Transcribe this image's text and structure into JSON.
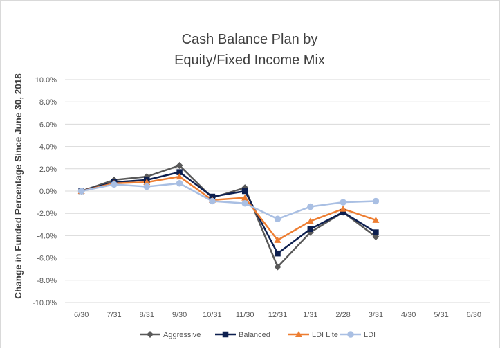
{
  "chart_data": {
    "type": "line",
    "title_lines": [
      "Cash Balance Plan by",
      "Equity/Fixed Income Mix"
    ],
    "xlabel": "",
    "ylabel": "Change in Funded Percentage Since June 30, 2018",
    "categories": [
      "6/30",
      "7/31",
      "8/31",
      "9/30",
      "10/31",
      "11/30",
      "12/31",
      "1/31",
      "2/28",
      "3/31",
      "4/30",
      "5/31",
      "6/30"
    ],
    "ylim": [
      -10.0,
      10.0
    ],
    "yticks": [
      "10.0%",
      "8.0%",
      "6.0%",
      "4.0%",
      "2.0%",
      "0.0%",
      "-2.0%",
      "-4.0%",
      "-6.0%",
      "-8.0%",
      "-10.0%"
    ],
    "ytick_values": [
      10,
      8,
      6,
      4,
      2,
      0,
      -2,
      -4,
      -6,
      -8,
      -10
    ],
    "grid": "horizontal",
    "legend_position": "bottom",
    "series": [
      {
        "name": "Aggressive",
        "color": "#595959",
        "marker": "diamond",
        "values": [
          0.0,
          1.0,
          1.3,
          2.3,
          -0.6,
          0.3,
          -6.8,
          -3.7,
          -1.9,
          -4.1,
          null,
          null,
          null
        ]
      },
      {
        "name": "Balanced",
        "color": "#0d1f4f",
        "marker": "square",
        "values": [
          0.0,
          0.8,
          1.0,
          1.7,
          -0.5,
          0.0,
          -5.6,
          -3.4,
          -1.9,
          -3.7,
          null,
          null,
          null
        ]
      },
      {
        "name": "LDI Lite",
        "color": "#ed7d31",
        "marker": "triangle",
        "values": [
          0.0,
          0.7,
          0.8,
          1.3,
          -0.8,
          -0.6,
          -4.4,
          -2.7,
          -1.6,
          -2.6,
          null,
          null,
          null
        ]
      },
      {
        "name": "LDI",
        "color": "#a9bfe3",
        "marker": "circle",
        "values": [
          0.0,
          0.6,
          0.4,
          0.7,
          -0.9,
          -1.1,
          -2.5,
          -1.4,
          -1.0,
          -0.9,
          null,
          null,
          null
        ]
      }
    ]
  }
}
